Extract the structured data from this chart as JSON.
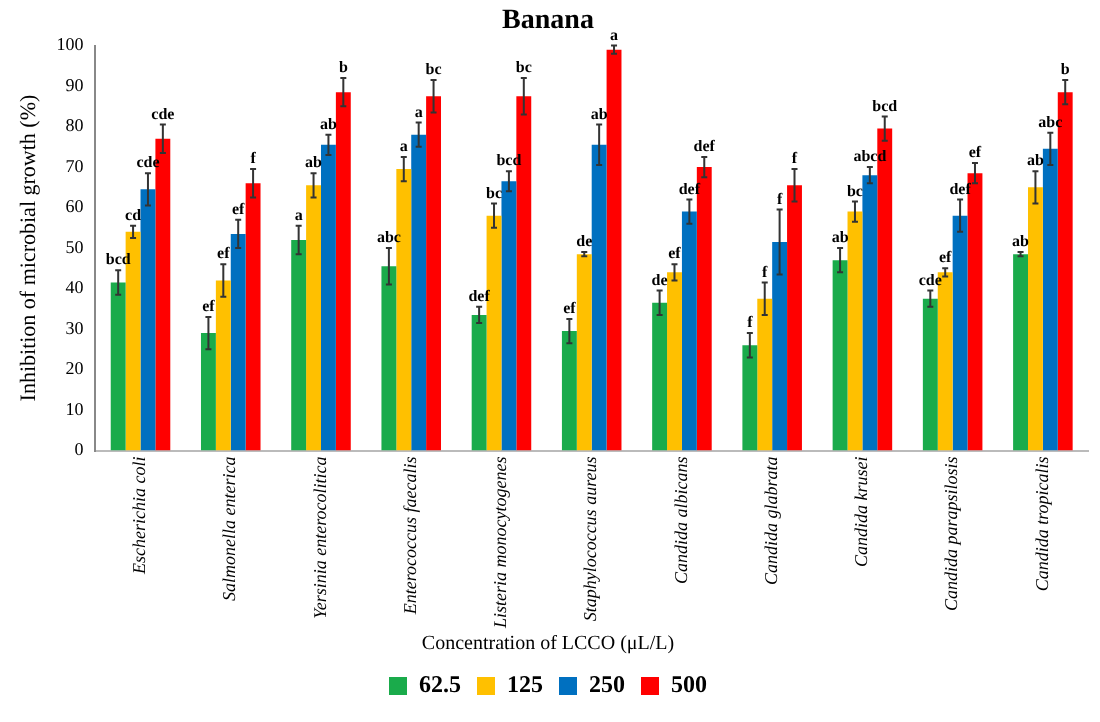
{
  "chart_data": {
    "type": "bar",
    "title": "Banana",
    "ylabel": "Inhibition of microbial growth (%)",
    "legend_title": "Concentration of LCCO (μL/L)",
    "categories": [
      "Escherichia coli",
      "Salmonella enterica",
      "Yersinia enterocolitica",
      "Enterococcus faecalis",
      "Listeria monocytogenes",
      "Staphylococcus aureus",
      "Candida albicans",
      "Candida glabrata",
      "Candida krusei",
      "Candida parapsilosis",
      "Candida tropicalis"
    ],
    "series": [
      {
        "name": "62.5",
        "color": "#1aab4b",
        "values": [
          41.5,
          29,
          52,
          45.5,
          33.5,
          29.5,
          36.5,
          26,
          47,
          37.5,
          48.5
        ],
        "errors": [
          3,
          4,
          3.5,
          4.5,
          2,
          3,
          3,
          3,
          3,
          2,
          0.5
        ],
        "value_labels": [
          "bcd",
          "ef",
          "a",
          "abc",
          "def",
          "ef",
          "de",
          "f",
          "ab",
          "cde",
          "ab"
        ]
      },
      {
        "name": "125",
        "color": "#ffc000",
        "values": [
          54,
          42,
          65.5,
          69.5,
          58,
          48.5,
          44,
          37.5,
          59,
          44,
          65
        ],
        "errors": [
          1.5,
          4,
          3,
          3,
          3,
          0.5,
          2,
          4,
          2.5,
          1,
          4
        ],
        "value_labels": [
          "cd",
          "ef",
          "ab",
          "a",
          "bc",
          "de",
          "ef",
          "f",
          "bc",
          "ef",
          "ab"
        ]
      },
      {
        "name": "250",
        "color": "#0070c0",
        "values": [
          64.5,
          53.5,
          75.5,
          78,
          66.5,
          75.5,
          59,
          51.5,
          68,
          58,
          74.5
        ],
        "errors": [
          4,
          3.5,
          2.5,
          3,
          2.5,
          5,
          3,
          8,
          2,
          4,
          4
        ],
        "value_labels": [
          "cde",
          "ef",
          "ab",
          "a",
          "bcd",
          "ab",
          "def",
          "f",
          "abcd",
          "def",
          "abc"
        ]
      },
      {
        "name": "500",
        "color": "#ff0000",
        "values": [
          77,
          66,
          88.5,
          87.5,
          87.5,
          99,
          70,
          65.5,
          79.5,
          68.5,
          88.5
        ],
        "errors": [
          3.5,
          3.5,
          3.5,
          4,
          4.5,
          1,
          2.5,
          4,
          3,
          2.5,
          3
        ],
        "value_labels": [
          "cde",
          "f",
          "b",
          "bc",
          "bc",
          "a",
          "def",
          "f",
          "bcd",
          "ef",
          "b"
        ]
      }
    ],
    "ylim": [
      0,
      100
    ],
    "yticks": [
      0,
      10,
      20,
      30,
      40,
      50,
      60,
      70,
      80,
      90,
      100
    ],
    "grid": false,
    "legend": "bottom"
  }
}
